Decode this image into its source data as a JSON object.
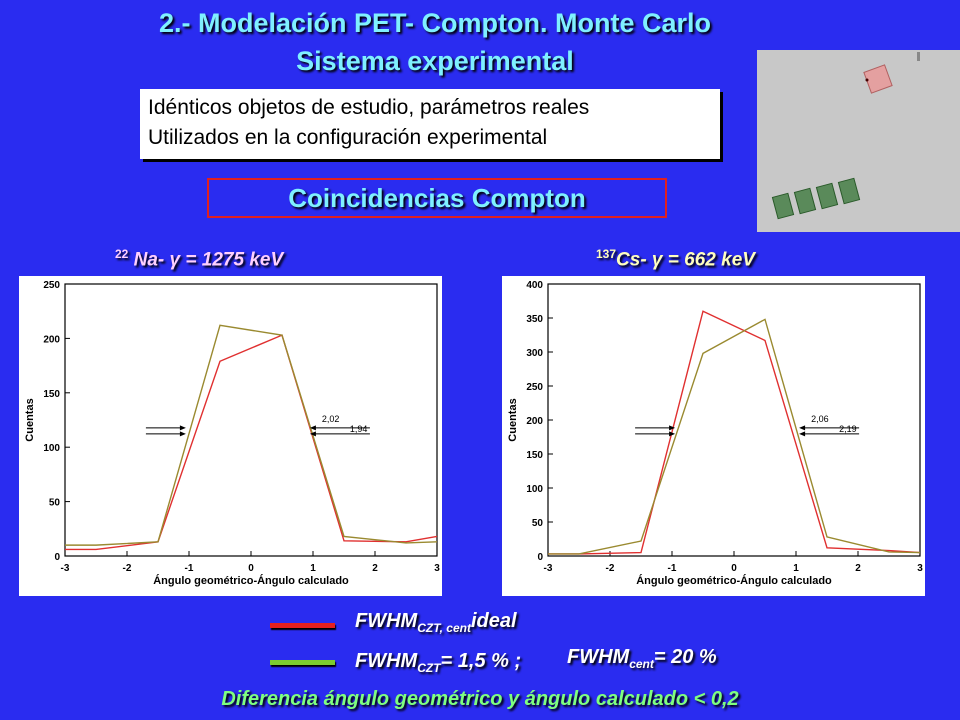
{
  "title": {
    "line1": "2.- Modelación PET- Compton. Monte Carlo",
    "line2": "Sistema experimental"
  },
  "info": {
    "line1": "Idénticos objetos de estudio, parámetros reales",
    "line2": "Utilizados en la configuración experimental"
  },
  "coincidencias": "Coincidencias Compton",
  "caption_left": {
    "sup": "22",
    "text": " Na- ",
    "gamma": "γ",
    "rest": " = 1275 keV"
  },
  "caption_right": {
    "sup": "137",
    "text": "Cs- γ = 662 keV"
  },
  "legend": {
    "ideal": {
      "main": "FWHM",
      "sub": "CZT, cent",
      "rest": "ideal",
      "color": "#e42020"
    },
    "real_a": {
      "main": "FWHM",
      "sub": "CZT",
      "rest": "= 1,5 % ;"
    },
    "real_b": {
      "main": "FWHM",
      "sub": "cent",
      "rest": "= 20 %"
    },
    "real_color": "#7ccc30"
  },
  "footer": "Diferencia ángulo geométrico y ángulo calculado < 0,2",
  "chart_data": [
    {
      "type": "line",
      "xlabel": "Ángulo geométrico-Ángulo calculado",
      "ylabel": "Cuentas",
      "xlim": [
        -3,
        3
      ],
      "ylim": [
        0,
        250
      ],
      "xticks": [
        -3,
        -2,
        -1,
        0,
        1,
        2,
        3
      ],
      "yticks": [
        0,
        50,
        100,
        150,
        200,
        250
      ],
      "series": [
        {
          "color": "#e03030",
          "x": [
            -3,
            -2.5,
            -1.5,
            -0.5,
            0.5,
            1.5,
            2.5,
            3
          ],
          "y": [
            6,
            6,
            13,
            179,
            203,
            14,
            13,
            18
          ]
        },
        {
          "color": "#9a8a30",
          "x": [
            -3,
            -2.5,
            -1.5,
            -0.5,
            0.5,
            1.5,
            2.5,
            3
          ],
          "y": [
            10,
            10,
            13,
            212,
            203,
            18,
            12,
            13
          ]
        }
      ],
      "annotations": [
        "2,02",
        "1,94"
      ]
    },
    {
      "type": "line",
      "xlabel": "Ángulo geométrico-Ángulo calculado",
      "ylabel": "Cuentas",
      "xlim": [
        -3,
        3
      ],
      "ylim": [
        0,
        400
      ],
      "xticks": [
        -3,
        -2,
        -1,
        0,
        1,
        2,
        3
      ],
      "yticks": [
        0,
        50,
        100,
        150,
        200,
        250,
        300,
        350,
        400
      ],
      "series": [
        {
          "color": "#e03030",
          "x": [
            -3,
            -2.5,
            -1.5,
            -0.5,
            0.5,
            1.5,
            2.5,
            3
          ],
          "y": [
            3,
            3,
            5,
            360,
            317,
            12,
            8,
            5
          ]
        },
        {
          "color": "#9a8a30",
          "x": [
            -3,
            -2.5,
            -1.5,
            -0.5,
            0.5,
            1.5,
            2.5,
            3
          ],
          "y": [
            3,
            3,
            22,
            298,
            348,
            28,
            6,
            5
          ]
        }
      ],
      "annotations": [
        "2,06",
        "2,19"
      ]
    }
  ]
}
